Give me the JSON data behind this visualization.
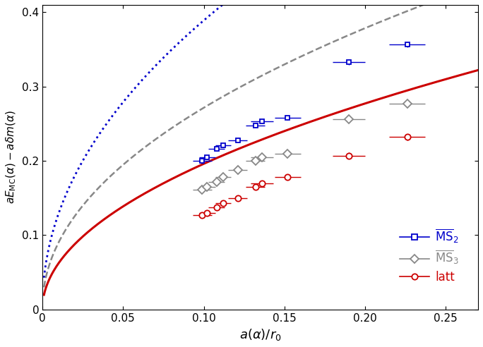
{
  "xlim": [
    0,
    0.27
  ],
  "ylim": [
    0,
    0.41
  ],
  "xticks": [
    0,
    0.05,
    0.1,
    0.15,
    0.2,
    0.25
  ],
  "yticks": [
    0.0,
    0.1,
    0.2,
    0.3,
    0.4
  ],
  "ms2_x": [
    0.099,
    0.102,
    0.108,
    0.112,
    0.121,
    0.132,
    0.136,
    0.152,
    0.19,
    0.226
  ],
  "ms2_y": [
    0.2,
    0.205,
    0.216,
    0.221,
    0.228,
    0.248,
    0.253,
    0.258,
    0.333,
    0.357
  ],
  "ms2_xerr": [
    0.006,
    0.005,
    0.005,
    0.005,
    0.006,
    0.006,
    0.007,
    0.008,
    0.01,
    0.011
  ],
  "ms2_yerr": [
    0.004,
    0.003,
    0.003,
    0.003,
    0.003,
    0.003,
    0.003,
    0.003,
    0.004,
    0.004
  ],
  "ms3_x": [
    0.099,
    0.102,
    0.108,
    0.112,
    0.121,
    0.132,
    0.136,
    0.152,
    0.19,
    0.226
  ],
  "ms3_y": [
    0.161,
    0.165,
    0.172,
    0.178,
    0.188,
    0.2,
    0.205,
    0.21,
    0.256,
    0.277
  ],
  "ms3_xerr": [
    0.006,
    0.005,
    0.005,
    0.005,
    0.006,
    0.006,
    0.007,
    0.008,
    0.01,
    0.011
  ],
  "ms3_yerr": [
    0.004,
    0.003,
    0.003,
    0.003,
    0.003,
    0.003,
    0.003,
    0.003,
    0.004,
    0.004
  ],
  "latt_x": [
    0.099,
    0.102,
    0.108,
    0.112,
    0.121,
    0.132,
    0.136,
    0.152,
    0.19,
    0.226
  ],
  "latt_y": [
    0.127,
    0.13,
    0.137,
    0.143,
    0.15,
    0.165,
    0.17,
    0.178,
    0.207,
    0.232
  ],
  "latt_xerr": [
    0.006,
    0.005,
    0.005,
    0.005,
    0.006,
    0.006,
    0.007,
    0.008,
    0.01,
    0.011
  ],
  "latt_yerr": [
    0.004,
    0.003,
    0.003,
    0.003,
    0.003,
    0.003,
    0.003,
    0.003,
    0.004,
    0.004
  ],
  "ms2_curve_color": "#0000cc",
  "ms3_curve_color": "#888888",
  "latt_curve_color": "#cc0000",
  "ms2_curve_params": [
    1.175,
    0.48
  ],
  "ms3_curve_params": [
    0.82,
    0.48
  ],
  "latt_curve_params": [
    0.62,
    0.5
  ],
  "background_color": "#ffffff"
}
